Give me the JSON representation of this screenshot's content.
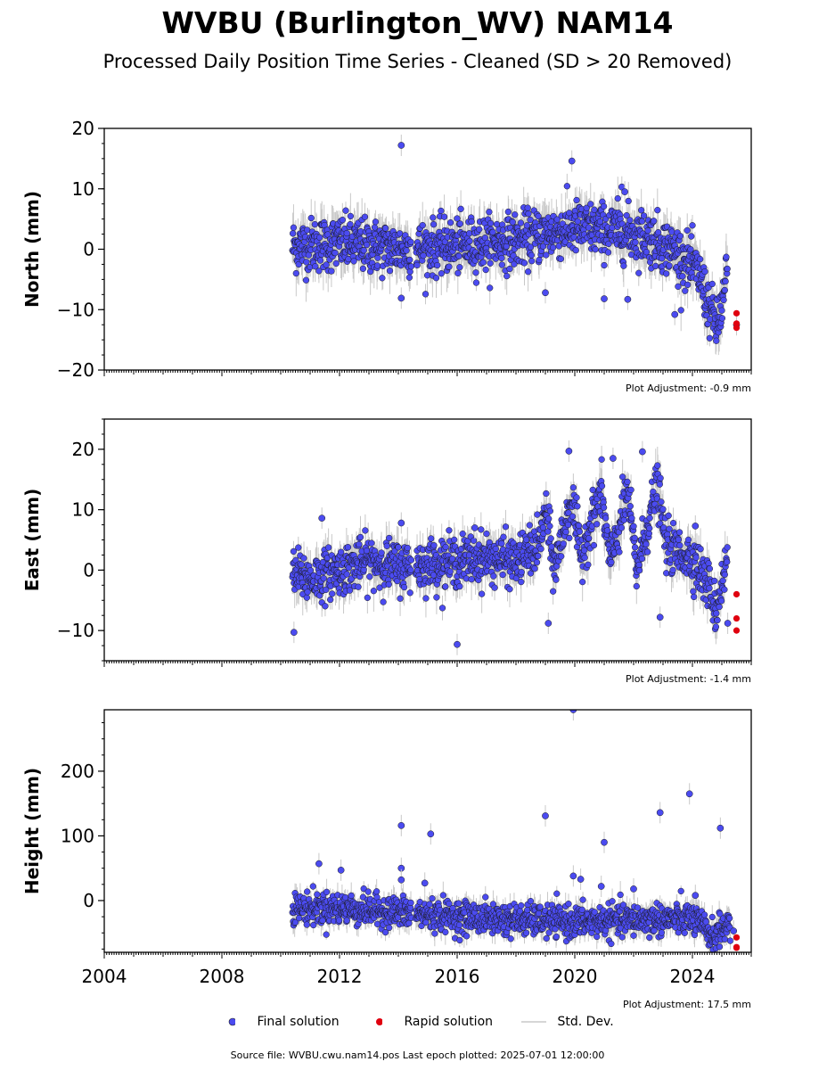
{
  "header": {
    "title": "WVBU (Burlington_WV) NAM14",
    "subtitle": "Processed Daily Position Time Series - Cleaned (SD > 20 Removed)"
  },
  "legend": {
    "final_label": "Final solution",
    "rapid_label": "Rapid solution",
    "std_label": "Std. Dev."
  },
  "footer": {
    "source": "Source file: WVBU.cwu.nam14.pos  Last epoch plotted: 2025-07-01 12:00:00"
  },
  "colors": {
    "final": "#4b4bf0",
    "final_edge": "#1a1a1a",
    "rapid": "#e0000f",
    "stddev": "#c8c8c8"
  },
  "chart_data": [
    {
      "type": "scatter",
      "ylabel": "North (mm)",
      "adjustment": "Plot Adjustment: -0.9 mm",
      "xlim": [
        2004,
        2026
      ],
      "ylim": [
        -20,
        20
      ],
      "yticks": [
        -20,
        -10,
        0,
        10,
        20
      ],
      "ytick_labels": [
        "−20",
        "−10",
        "0",
        "10",
        "20"
      ],
      "final_trend": [
        [
          2010.4,
          0.5
        ],
        [
          2012,
          1
        ],
        [
          2014,
          0
        ],
        [
          2016,
          0.5
        ],
        [
          2018,
          1.5
        ],
        [
          2019,
          2.5
        ],
        [
          2020,
          3.5
        ],
        [
          2021.5,
          3
        ],
        [
          2022.5,
          2
        ],
        [
          2023.3,
          0
        ],
        [
          2023.8,
          -2
        ],
        [
          2024.2,
          -4
        ],
        [
          2024.6,
          -10
        ],
        [
          2024.85,
          -13
        ],
        [
          2025.1,
          -7
        ],
        [
          2025.2,
          -2
        ]
      ],
      "final_spread": 2.2,
      "outliers": [
        [
          2014.1,
          17.2
        ],
        [
          2014.1,
          -8.1
        ],
        [
          2019.9,
          14.6
        ],
        [
          2021.6,
          10.3
        ],
        [
          2021.7,
          9.5
        ],
        [
          2021.0,
          -8.2
        ],
        [
          2021.8,
          -8.3
        ],
        [
          2019.0,
          -7.2
        ],
        [
          2023.4,
          -10.8
        ],
        [
          2025.5,
          -12.5
        ]
      ],
      "rapid": [
        [
          2025.5,
          -10.6
        ],
        [
          2025.5,
          -12.3
        ],
        [
          2025.5,
          -13.0
        ]
      ]
    },
    {
      "type": "scatter",
      "ylabel": "East (mm)",
      "adjustment": "Plot Adjustment: -1.4 mm",
      "xlim": [
        2004,
        2026
      ],
      "ylim": [
        -15,
        25
      ],
      "yticks": [
        -10,
        0,
        10,
        20
      ],
      "ytick_labels": [
        "−10",
        "0",
        "10",
        "20"
      ],
      "final_trend": [
        [
          2010.4,
          -0.5
        ],
        [
          2011,
          -1.5
        ],
        [
          2012,
          0
        ],
        [
          2013,
          1.5
        ],
        [
          2014,
          0.5
        ],
        [
          2015,
          1
        ],
        [
          2016,
          1.5
        ],
        [
          2017,
          2
        ],
        [
          2018,
          1.5
        ],
        [
          2018.8,
          4
        ],
        [
          2019.0,
          10
        ],
        [
          2019.3,
          0
        ],
        [
          2019.6,
          6
        ],
        [
          2019.9,
          12
        ],
        [
          2020.2,
          2
        ],
        [
          2020.5,
          7
        ],
        [
          2020.9,
          13
        ],
        [
          2021.2,
          1
        ],
        [
          2021.5,
          7
        ],
        [
          2021.8,
          13
        ],
        [
          2022.1,
          0
        ],
        [
          2022.5,
          8
        ],
        [
          2022.8,
          14
        ],
        [
          2023.1,
          4
        ],
        [
          2023.5,
          3
        ],
        [
          2024,
          2
        ],
        [
          2024.6,
          -3
        ],
        [
          2024.8,
          -7
        ],
        [
          2025.0,
          -2
        ],
        [
          2025.2,
          2
        ]
      ],
      "final_spread": 2.0,
      "outliers": [
        [
          2010.45,
          -10.3
        ],
        [
          2016.0,
          -12.3
        ],
        [
          2014.1,
          7.8
        ],
        [
          2016.6,
          7.0
        ],
        [
          2019.8,
          19.7
        ],
        [
          2021.3,
          18.5
        ],
        [
          2022.3,
          19.6
        ],
        [
          2022.9,
          -7.8
        ],
        [
          2019.1,
          -8.8
        ],
        [
          2011.4,
          8.6
        ],
        [
          2024.1,
          7.3
        ],
        [
          2025.2,
          -8.8
        ]
      ],
      "rapid": [
        [
          2025.5,
          -4.0
        ],
        [
          2025.5,
          -8.0
        ],
        [
          2025.5,
          -10.0
        ]
      ]
    },
    {
      "type": "scatter",
      "ylabel": "Height (mm)",
      "adjustment": "Plot Adjustment: 17.5 mm",
      "xlim": [
        2004,
        2026
      ],
      "ylim": [
        -80,
        295
      ],
      "yticks": [
        0,
        100,
        200
      ],
      "ytick_labels": [
        "0",
        "100",
        "200"
      ],
      "xticks": [
        2004,
        2008,
        2012,
        2016,
        2020,
        2024
      ],
      "xtick_labels": [
        "2004",
        "2008",
        "2012",
        "2016",
        "2020",
        "2024"
      ],
      "final_trend": [
        [
          2010.4,
          -12
        ],
        [
          2012,
          -12
        ],
        [
          2014,
          -18
        ],
        [
          2016,
          -25
        ],
        [
          2018,
          -30
        ],
        [
          2020,
          -33
        ],
        [
          2022,
          -30
        ],
        [
          2024,
          -28
        ],
        [
          2024.7,
          -55
        ],
        [
          2025.1,
          -40
        ],
        [
          2025.3,
          -35
        ]
      ],
      "final_spread": 12,
      "outliers": [
        [
          2011.3,
          57
        ],
        [
          2012.05,
          47
        ],
        [
          2014.1,
          116
        ],
        [
          2014.1,
          50
        ],
        [
          2014.1,
          32
        ],
        [
          2014.9,
          27
        ],
        [
          2015.1,
          103
        ],
        [
          2019.0,
          131
        ],
        [
          2019.95,
          295
        ],
        [
          2019.95,
          38
        ],
        [
          2020.2,
          33
        ],
        [
          2021.0,
          90
        ],
        [
          2020.9,
          22
        ],
        [
          2022.9,
          136
        ],
        [
          2023.9,
          165
        ],
        [
          2024.95,
          112
        ],
        [
          2025.4,
          -47
        ],
        [
          2024.1,
          8
        ],
        [
          2022.0,
          18
        ]
      ],
      "rapid": [
        [
          2025.5,
          -57
        ],
        [
          2025.5,
          -72
        ],
        [
          2025.5,
          -73
        ]
      ]
    }
  ]
}
